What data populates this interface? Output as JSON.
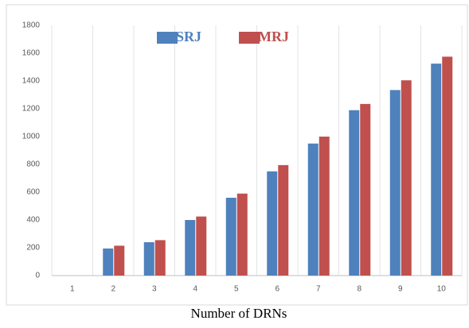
{
  "chart_data": {
    "type": "bar",
    "xlabel": "Number of DRNs",
    "categories": [
      "1",
      "2",
      "3",
      "4",
      "5",
      "6",
      "7",
      "8",
      "9",
      "10"
    ],
    "series": [
      {
        "name": "SRJ",
        "color": "#4f81bd",
        "values": [
          0,
          195,
          240,
          400,
          560,
          750,
          950,
          1190,
          1335,
          1525
        ]
      },
      {
        "name": "MRJ",
        "color": "#c0504d",
        "values": [
          0,
          215,
          255,
          425,
          590,
          795,
          1000,
          1235,
          1405,
          1575
        ]
      }
    ],
    "ylim": [
      0,
      1800
    ],
    "yticks": [
      0,
      200,
      400,
      600,
      800,
      1000,
      1200,
      1400,
      1600,
      1800
    ],
    "legend": "top",
    "grid": true
  }
}
